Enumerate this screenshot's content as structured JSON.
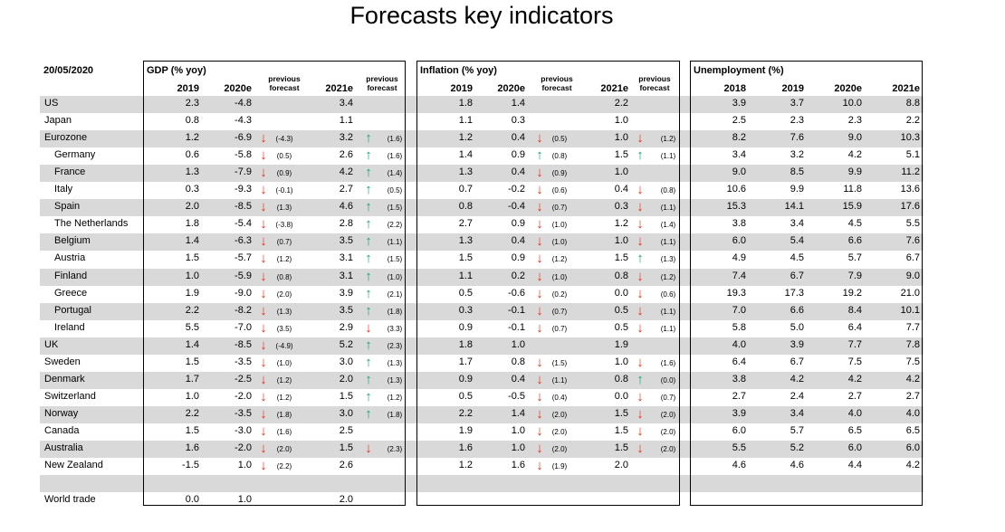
{
  "title": "Forecasts key indicators",
  "date": "20/05/2020",
  "sections": {
    "gdp": "GDP (% yoy)",
    "inflation": "Inflation (% yoy)",
    "unemployment": "Unemployment (%)"
  },
  "previous_forecast_label": [
    "previous",
    "forecast"
  ],
  "columns": {
    "gdp": [
      "2019",
      "2020e",
      "2021e"
    ],
    "inflation": [
      "2019",
      "2020e",
      "2021e"
    ],
    "unemployment": [
      "2018",
      "2019",
      "2020e",
      "2021e"
    ]
  },
  "arrow_colors": {
    "down": "#e8311d",
    "up": "#1aa574"
  },
  "rows": [
    {
      "name": "US",
      "indent": false,
      "shaded": true,
      "gdp": [
        "2.3",
        "-4.8",
        null,
        null,
        "3.4",
        null,
        null
      ],
      "inf": [
        "1.8",
        "1.4",
        null,
        null,
        "2.2",
        null,
        null
      ],
      "un": [
        "3.9",
        "3.7",
        "10.0",
        "8.8"
      ]
    },
    {
      "name": "Japan",
      "indent": false,
      "shaded": false,
      "gdp": [
        "0.8",
        "-4.3",
        null,
        null,
        "1.1",
        null,
        null
      ],
      "inf": [
        "1.1",
        "0.3",
        null,
        null,
        "1.0",
        null,
        null
      ],
      "un": [
        "2.5",
        "2.3",
        "2.3",
        "2.2"
      ]
    },
    {
      "name": "Eurozone",
      "indent": false,
      "shaded": true,
      "gdp": [
        "1.2",
        "-6.9",
        "down",
        "(-4.3)",
        "3.2",
        "up",
        "(1.6)"
      ],
      "inf": [
        "1.2",
        "0.4",
        "down",
        "(0.5)",
        "1.0",
        "down",
        "(1.2)"
      ],
      "un": [
        "8.2",
        "7.6",
        "9.0",
        "10.3"
      ]
    },
    {
      "name": "Germany",
      "indent": true,
      "shaded": false,
      "gdp": [
        "0.6",
        "-5.8",
        "down",
        "(0.5)",
        "2.6",
        "up",
        "(1.6)"
      ],
      "inf": [
        "1.4",
        "0.9",
        "up",
        "(0.8)",
        "1.5",
        "up",
        "(1.1)"
      ],
      "un": [
        "3.4",
        "3.2",
        "4.2",
        "5.1"
      ]
    },
    {
      "name": "France",
      "indent": true,
      "shaded": true,
      "gdp": [
        "1.3",
        "-7.9",
        "down",
        "(0.9)",
        "4.2",
        "up",
        "(1.4)"
      ],
      "inf": [
        "1.3",
        "0.4",
        "down",
        "(0.9)",
        "1.0",
        null,
        null
      ],
      "un": [
        "9.0",
        "8.5",
        "9.9",
        "11.2"
      ]
    },
    {
      "name": "Italy",
      "indent": true,
      "shaded": false,
      "gdp": [
        "0.3",
        "-9.3",
        "down",
        "(-0.1)",
        "2.7",
        "up",
        "(0.5)"
      ],
      "inf": [
        "0.7",
        "-0.2",
        "down",
        "(0.6)",
        "0.4",
        "down",
        "(0.8)"
      ],
      "un": [
        "10.6",
        "9.9",
        "11.8",
        "13.6"
      ]
    },
    {
      "name": "Spain",
      "indent": true,
      "shaded": true,
      "gdp": [
        "2.0",
        "-8.5",
        "down",
        "(1.3)",
        "4.6",
        "up",
        "(1.5)"
      ],
      "inf": [
        "0.8",
        "-0.4",
        "down",
        "(0.7)",
        "0.3",
        "down",
        "(1.1)"
      ],
      "un": [
        "15.3",
        "14.1",
        "15.9",
        "17.6"
      ]
    },
    {
      "name": "The Netherlands",
      "indent": true,
      "shaded": false,
      "gdp": [
        "1.8",
        "-5.4",
        "down",
        "(-3.8)",
        "2.8",
        "up",
        "(2.2)"
      ],
      "inf": [
        "2.7",
        "0.9",
        "down",
        "(1.0)",
        "1.2",
        "down",
        "(1.4)"
      ],
      "un": [
        "3.8",
        "3.4",
        "4.5",
        "5.5"
      ]
    },
    {
      "name": "Belgium",
      "indent": true,
      "shaded": true,
      "gdp": [
        "1.4",
        "-6.3",
        "down",
        "(0.7)",
        "3.5",
        "up",
        "(1.1)"
      ],
      "inf": [
        "1.3",
        "0.4",
        "down",
        "(1.0)",
        "1.0",
        "down",
        "(1.1)"
      ],
      "un": [
        "6.0",
        "5.4",
        "6.6",
        "7.6"
      ]
    },
    {
      "name": "Austria",
      "indent": true,
      "shaded": false,
      "gdp": [
        "1.5",
        "-5.7",
        "down",
        "(1.2)",
        "3.1",
        "up",
        "(1.5)"
      ],
      "inf": [
        "1.5",
        "0.9",
        "down",
        "(1.2)",
        "1.5",
        "up",
        "(1.3)"
      ],
      "un": [
        "4.9",
        "4.5",
        "5.7",
        "6.7"
      ]
    },
    {
      "name": "Finland",
      "indent": true,
      "shaded": true,
      "gdp": [
        "1.0",
        "-5.9",
        "down",
        "(0.8)",
        "3.1",
        "up",
        "(1.0)"
      ],
      "inf": [
        "1.1",
        "0.2",
        "down",
        "(1.0)",
        "0.8",
        "down",
        "(1.2)"
      ],
      "un": [
        "7.4",
        "6.7",
        "7.9",
        "9.0"
      ]
    },
    {
      "name": "Greece",
      "indent": true,
      "shaded": false,
      "gdp": [
        "1.9",
        "-9.0",
        "down",
        "(2.0)",
        "3.9",
        "up",
        "(2.1)"
      ],
      "inf": [
        "0.5",
        "-0.6",
        "down",
        "(0.2)",
        "0.0",
        "down",
        "(0.6)"
      ],
      "un": [
        "19.3",
        "17.3",
        "19.2",
        "21.0"
      ]
    },
    {
      "name": "Portugal",
      "indent": true,
      "shaded": true,
      "gdp": [
        "2.2",
        "-8.2",
        "down",
        "(1.3)",
        "3.5",
        "up",
        "(1.8)"
      ],
      "inf": [
        "0.3",
        "-0.1",
        "down",
        "(0.7)",
        "0.5",
        "down",
        "(1.1)"
      ],
      "un": [
        "7.0",
        "6.6",
        "8.4",
        "10.1"
      ]
    },
    {
      "name": "Ireland",
      "indent": true,
      "shaded": false,
      "gdp": [
        "5.5",
        "-7.0",
        "down",
        "(3.5)",
        "2.9",
        "down",
        "(3.3)"
      ],
      "inf": [
        "0.9",
        "-0.1",
        "down",
        "(0.7)",
        "0.5",
        "down",
        "(1.1)"
      ],
      "un": [
        "5.8",
        "5.0",
        "6.4",
        "7.7"
      ]
    },
    {
      "name": "UK",
      "indent": false,
      "shaded": true,
      "gdp": [
        "1.4",
        "-8.5",
        "down",
        "(-4.9)",
        "5.2",
        "up",
        "(2.3)"
      ],
      "inf": [
        "1.8",
        "1.0",
        null,
        null,
        "1.9",
        null,
        null
      ],
      "un": [
        "4.0",
        "3.9",
        "7.7",
        "7.8"
      ]
    },
    {
      "name": "Sweden",
      "indent": false,
      "shaded": false,
      "gdp": [
        "1.5",
        "-3.5",
        "down",
        "(1.0)",
        "3.0",
        "up",
        "(1.3)"
      ],
      "inf": [
        "1.7",
        "0.8",
        "down",
        "(1.5)",
        "1.0",
        "down",
        "(1.6)"
      ],
      "un": [
        "6.4",
        "6.7",
        "7.5",
        "7.5"
      ]
    },
    {
      "name": "Denmark",
      "indent": false,
      "shaded": true,
      "gdp": [
        "1.7",
        "-2.5",
        "down",
        "(1.2)",
        "2.0",
        "up",
        "(1.3)"
      ],
      "inf": [
        "0.9",
        "0.4",
        "down",
        "(1.1)",
        "0.8",
        "up",
        "(0.0)"
      ],
      "un": [
        "3.8",
        "4.2",
        "4.2",
        "4.2"
      ]
    },
    {
      "name": "Switzerland",
      "indent": false,
      "shaded": false,
      "gdp": [
        "1.0",
        "-2.0",
        "down",
        "(1.2)",
        "1.5",
        "up",
        "(1.2)"
      ],
      "inf": [
        "0.5",
        "-0.5",
        "down",
        "(0.4)",
        "0.0",
        "down",
        "(0.7)"
      ],
      "un": [
        "2.7",
        "2.4",
        "2.7",
        "2.7"
      ]
    },
    {
      "name": "Norway",
      "indent": false,
      "shaded": true,
      "gdp": [
        "2.2",
        "-3.5",
        "down",
        "(1.8)",
        "3.0",
        "up",
        "(1.8)"
      ],
      "inf": [
        "2.2",
        "1.4",
        "down",
        "(2.0)",
        "1.5",
        "down",
        "(2.0)"
      ],
      "un": [
        "3.9",
        "3.4",
        "4.0",
        "4.0"
      ]
    },
    {
      "name": "Canada",
      "indent": false,
      "shaded": false,
      "gdp": [
        "1.5",
        "-3.0",
        "down",
        "(1.6)",
        "2.5",
        null,
        null
      ],
      "inf": [
        "1.9",
        "1.0",
        "down",
        "(2.0)",
        "1.5",
        "down",
        "(2.0)"
      ],
      "un": [
        "6.0",
        "5.7",
        "6.5",
        "6.5"
      ]
    },
    {
      "name": "Australia",
      "indent": false,
      "shaded": true,
      "gdp": [
        "1.6",
        "-2.0",
        "down",
        "(2.0)",
        "1.5",
        "down",
        "(2.3)"
      ],
      "inf": [
        "1.6",
        "1.0",
        "down",
        "(2.0)",
        "1.5",
        "down",
        "(2.0)"
      ],
      "un": [
        "5.5",
        "5.2",
        "6.0",
        "6.0"
      ]
    },
    {
      "name": "New Zealand",
      "indent": false,
      "shaded": false,
      "gdp": [
        "-1.5",
        "1.0",
        "down",
        "(2.2)",
        "2.6",
        null,
        null
      ],
      "inf": [
        "1.2",
        "1.6",
        "down",
        "(1.9)",
        "2.0",
        null,
        null
      ],
      "un": [
        "4.6",
        "4.6",
        "4.4",
        "4.2"
      ]
    },
    {
      "name": "",
      "indent": false,
      "shaded": true,
      "gdp": [
        null,
        null,
        null,
        null,
        null,
        null,
        null
      ],
      "inf": [
        null,
        null,
        null,
        null,
        null,
        null,
        null
      ],
      "un": [
        null,
        null,
        null,
        null
      ]
    },
    {
      "name": "World trade",
      "indent": false,
      "shaded": false,
      "gdp": [
        "0.0",
        "1.0",
        null,
        null,
        "2.0",
        null,
        null
      ],
      "inf": [
        null,
        null,
        null,
        null,
        null,
        null,
        null
      ],
      "un": [
        null,
        null,
        null,
        null
      ]
    }
  ]
}
